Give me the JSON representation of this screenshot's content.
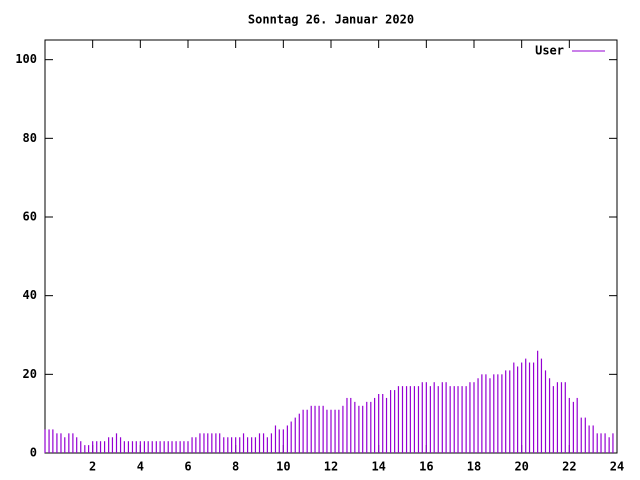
{
  "chart_data": {
    "type": "impulse",
    "title": "Sonntag 26. Januar 2020",
    "x": [
      0,
      0.17,
      0.33,
      0.5,
      0.67,
      0.83,
      1,
      1.17,
      1.33,
      1.5,
      1.67,
      1.83,
      2,
      2.17,
      2.33,
      2.5,
      2.67,
      2.83,
      3,
      3.17,
      3.33,
      3.5,
      3.67,
      3.83,
      4,
      4.17,
      4.33,
      4.5,
      4.67,
      4.83,
      5,
      5.17,
      5.33,
      5.5,
      5.67,
      5.83,
      6,
      6.17,
      6.33,
      6.5,
      6.67,
      6.83,
      7,
      7.17,
      7.33,
      7.5,
      7.67,
      7.83,
      8,
      8.17,
      8.33,
      8.5,
      8.67,
      8.83,
      9,
      9.17,
      9.33,
      9.5,
      9.67,
      9.83,
      10,
      10.17,
      10.33,
      10.5,
      10.67,
      10.83,
      11,
      11.17,
      11.33,
      11.5,
      11.67,
      11.83,
      12,
      12.17,
      12.33,
      12.5,
      12.67,
      12.83,
      13,
      13.17,
      13.33,
      13.5,
      13.67,
      13.83,
      14,
      14.17,
      14.33,
      14.5,
      14.67,
      14.83,
      15,
      15.17,
      15.33,
      15.5,
      15.67,
      15.83,
      16,
      16.17,
      16.33,
      16.5,
      16.67,
      16.83,
      17,
      17.17,
      17.33,
      17.5,
      17.67,
      17.83,
      18,
      18.17,
      18.33,
      18.5,
      18.67,
      18.83,
      19,
      19.17,
      19.33,
      19.5,
      19.67,
      19.83,
      20,
      20.17,
      20.33,
      20.5,
      20.67,
      20.83,
      21,
      21.17,
      21.33,
      21.5,
      21.67,
      21.83,
      22,
      22.17,
      22.33,
      22.5,
      22.67,
      22.83,
      23,
      23.17,
      23.33,
      23.5,
      23.67,
      23.83
    ],
    "series": [
      {
        "name": "User",
        "color": "#9400d3",
        "values": [
          6,
          6,
          6,
          5,
          5,
          4,
          5,
          5,
          4,
          3,
          2,
          2,
          3,
          3,
          3,
          3,
          4,
          4,
          5,
          4,
          3,
          3,
          3,
          3,
          3,
          3,
          3,
          3,
          3,
          3,
          3,
          3,
          3,
          3,
          3,
          3,
          3,
          4,
          4,
          5,
          5,
          5,
          5,
          5,
          5,
          4,
          4,
          4,
          4,
          4,
          5,
          4,
          4,
          4,
          5,
          5,
          4,
          5,
          7,
          6,
          6,
          7,
          8,
          9,
          10,
          11,
          11,
          12,
          12,
          12,
          12,
          11,
          11,
          11,
          11,
          12,
          14,
          14,
          13,
          12,
          12,
          13,
          13,
          14,
          15,
          15,
          14,
          16,
          16,
          17,
          17,
          17,
          17,
          17,
          17,
          18,
          18,
          17,
          18,
          17,
          18,
          18,
          17,
          17,
          17,
          17,
          17,
          18,
          18,
          19,
          20,
          20,
          19,
          20,
          20,
          20,
          21,
          21,
          23,
          22,
          23,
          24,
          23,
          23,
          26,
          24,
          21,
          19,
          17,
          18,
          18,
          18,
          14,
          13,
          14,
          9,
          9,
          7,
          7,
          5,
          5,
          5,
          4,
          5
        ]
      }
    ],
    "xlim": [
      0,
      24
    ],
    "xticks": [
      2,
      4,
      6,
      8,
      10,
      12,
      14,
      16,
      18,
      20,
      22,
      24
    ],
    "ylim": [
      0,
      105
    ],
    "yticks": [
      0,
      20,
      40,
      60,
      80,
      100
    ],
    "legend": "top-right"
  }
}
